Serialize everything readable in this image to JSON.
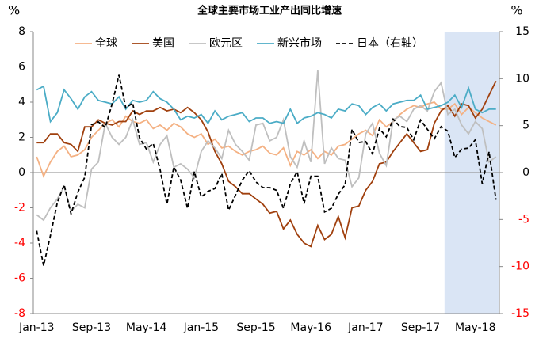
{
  "chart_data": {
    "type": "line",
    "title": "全球主要市场工业产出同比增速",
    "ylabel": "%",
    "y2label": "%",
    "categories": [
      "Jan-13",
      null,
      null,
      null,
      null,
      null,
      null,
      null,
      "Sep-13",
      null,
      null,
      null,
      null,
      null,
      null,
      null,
      "May-14",
      null,
      null,
      null,
      null,
      null,
      null,
      null,
      "Jan-15",
      null,
      null,
      null,
      null,
      null,
      null,
      null,
      "Sep-15",
      null,
      null,
      null,
      null,
      null,
      null,
      null,
      "May-16",
      null,
      null,
      null,
      null,
      null,
      null,
      null,
      "Jan-17",
      null,
      null,
      null,
      null,
      null,
      null,
      null,
      "Sep-17",
      null,
      null,
      null,
      null,
      null,
      null,
      null,
      "May-18",
      null,
      null,
      null
    ],
    "ylim": [
      -8,
      8
    ],
    "yticks": [
      -8,
      -6,
      -4,
      -2,
      0,
      2,
      4,
      6,
      8
    ],
    "y2lim": [
      -15,
      15
    ],
    "y2ticks": [
      -15,
      -10,
      -5,
      0,
      5,
      10,
      15
    ],
    "negative_tick_color": "#ff0000",
    "legend": "top",
    "series": [
      {
        "name": "全球",
        "color": "#f4b183",
        "values": [
          0.9,
          -0.2,
          0.6,
          1.2,
          1.5,
          0.9,
          1.0,
          1.3,
          2.0,
          2.4,
          2.8,
          3.0,
          2.6,
          3.2,
          2.9,
          2.8,
          3.0,
          2.5,
          2.7,
          2.4,
          2.8,
          2.6,
          2.2,
          2.0,
          2.2,
          1.6,
          1.9,
          1.4,
          1.5,
          1.2,
          1.0,
          1.2,
          1.3,
          1.5,
          1.1,
          1.0,
          1.4,
          0.4,
          1.2,
          1.0,
          1.3,
          0.8,
          1.2,
          1.0,
          1.5,
          1.6,
          1.9,
          2.2,
          2.4,
          2.1,
          3.0,
          2.6,
          2.9,
          3.3,
          3.6,
          3.8,
          3.7,
          3.9,
          4.0,
          3.6,
          3.6,
          3.9,
          3.3,
          3.7,
          3.4,
          3.1,
          2.9,
          2.7
        ]
      },
      {
        "name": "美国",
        "color": "#a0400e",
        "values": [
          1.7,
          1.7,
          2.2,
          2.2,
          1.7,
          1.6,
          1.2,
          2.6,
          2.6,
          3.0,
          2.8,
          2.7,
          2.9,
          2.9,
          3.5,
          3.3,
          3.5,
          3.5,
          3.7,
          3.5,
          3.6,
          3.4,
          3.7,
          3.4,
          3.0,
          2.3,
          1.2,
          0.5,
          -0.5,
          -0.8,
          -1.2,
          -1.2,
          -1.5,
          -1.8,
          -2.3,
          -2.2,
          -3.2,
          -2.7,
          -3.5,
          -4.0,
          -4.2,
          -3.0,
          -3.8,
          -3.5,
          -2.5,
          -3.7,
          -2.0,
          -1.9,
          -1.0,
          -0.5,
          0.5,
          0.6,
          1.2,
          1.7,
          2.2,
          1.7,
          1.2,
          1.3,
          2.8,
          3.5,
          3.8,
          3.2,
          3.9,
          3.8,
          3.1,
          3.6,
          4.4,
          5.2
        ]
      },
      {
        "name": "欧元区",
        "color": "#bfbfbf",
        "values": [
          -2.4,
          -2.7,
          -2.0,
          -1.5,
          -0.8,
          -2.2,
          -1.8,
          -2.0,
          0.2,
          0.6,
          2.8,
          2.0,
          1.6,
          2.0,
          3.0,
          1.6,
          1.7,
          0.6,
          1.6,
          2.1,
          0.3,
          0.5,
          0.2,
          -0.3,
          1.2,
          1.8,
          1.4,
          0.8,
          2.4,
          1.6,
          1.2,
          0.7,
          2.7,
          2.8,
          1.8,
          2.0,
          3.0,
          0.9,
          0.3,
          1.8,
          0.6,
          5.8,
          0.5,
          1.4,
          0.8,
          0.7,
          -0.8,
          -0.3,
          2.2,
          2.8,
          1.1,
          0.4,
          3.0,
          3.2,
          2.9,
          3.6,
          3.8,
          3.5,
          4.6,
          5.1,
          3.3,
          3.6,
          2.7,
          2.2,
          2.9,
          2.5,
          0.6,
          0.9
        ]
      },
      {
        "name": "新兴市场",
        "color": "#4bacc6",
        "values": [
          4.7,
          4.9,
          2.9,
          3.4,
          4.7,
          4.2,
          3.6,
          4.3,
          4.6,
          4.1,
          4.0,
          3.9,
          4.3,
          3.6,
          4.1,
          4.0,
          4.1,
          4.6,
          4.2,
          4.0,
          3.6,
          3.0,
          3.2,
          3.1,
          3.3,
          2.8,
          3.5,
          3.0,
          3.2,
          3.3,
          3.4,
          2.9,
          3.1,
          3.1,
          2.8,
          2.9,
          2.8,
          3.6,
          2.8,
          3.1,
          3.2,
          3.4,
          3.3,
          3.1,
          3.6,
          3.5,
          3.9,
          3.8,
          3.3,
          3.7,
          3.9,
          3.5,
          3.9,
          4.0,
          4.1,
          4.1,
          4.4,
          3.6,
          3.7,
          3.8,
          4.0,
          4.4,
          3.7,
          4.8,
          3.6,
          3.4,
          3.6,
          3.6
        ]
      },
      {
        "name": "日本（右轴）",
        "color": "#000000",
        "dash": true,
        "axis": "y2",
        "values": [
          -6.2,
          -9.9,
          -6.7,
          -3.2,
          -1.3,
          -4.4,
          -2.1,
          -0.5,
          5.1,
          5.4,
          4.8,
          7.3,
          10.4,
          6.9,
          7.4,
          3.7,
          2.5,
          3.1,
          0.3,
          -3.4,
          0.6,
          -0.8,
          -3.8,
          0.1,
          -2.6,
          -2.0,
          -1.7,
          -0.1,
          -4.0,
          -2.4,
          -0.8,
          0.2,
          -1.0,
          -1.6,
          -1.6,
          -1.9,
          -3.8,
          -1.2,
          0.1,
          -3.3,
          -0.4,
          -0.4,
          -4.2,
          -3.8,
          -2.3,
          -1.3,
          4.6,
          3.2,
          3.3,
          2.0,
          4.7,
          3.8,
          5.7,
          4.9,
          4.8,
          3.5,
          5.6,
          4.6,
          3.6,
          4.9,
          4.4,
          1.6,
          2.5,
          2.6,
          3.5,
          -1.2,
          2.2,
          -2.9
        ]
      }
    ]
  }
}
